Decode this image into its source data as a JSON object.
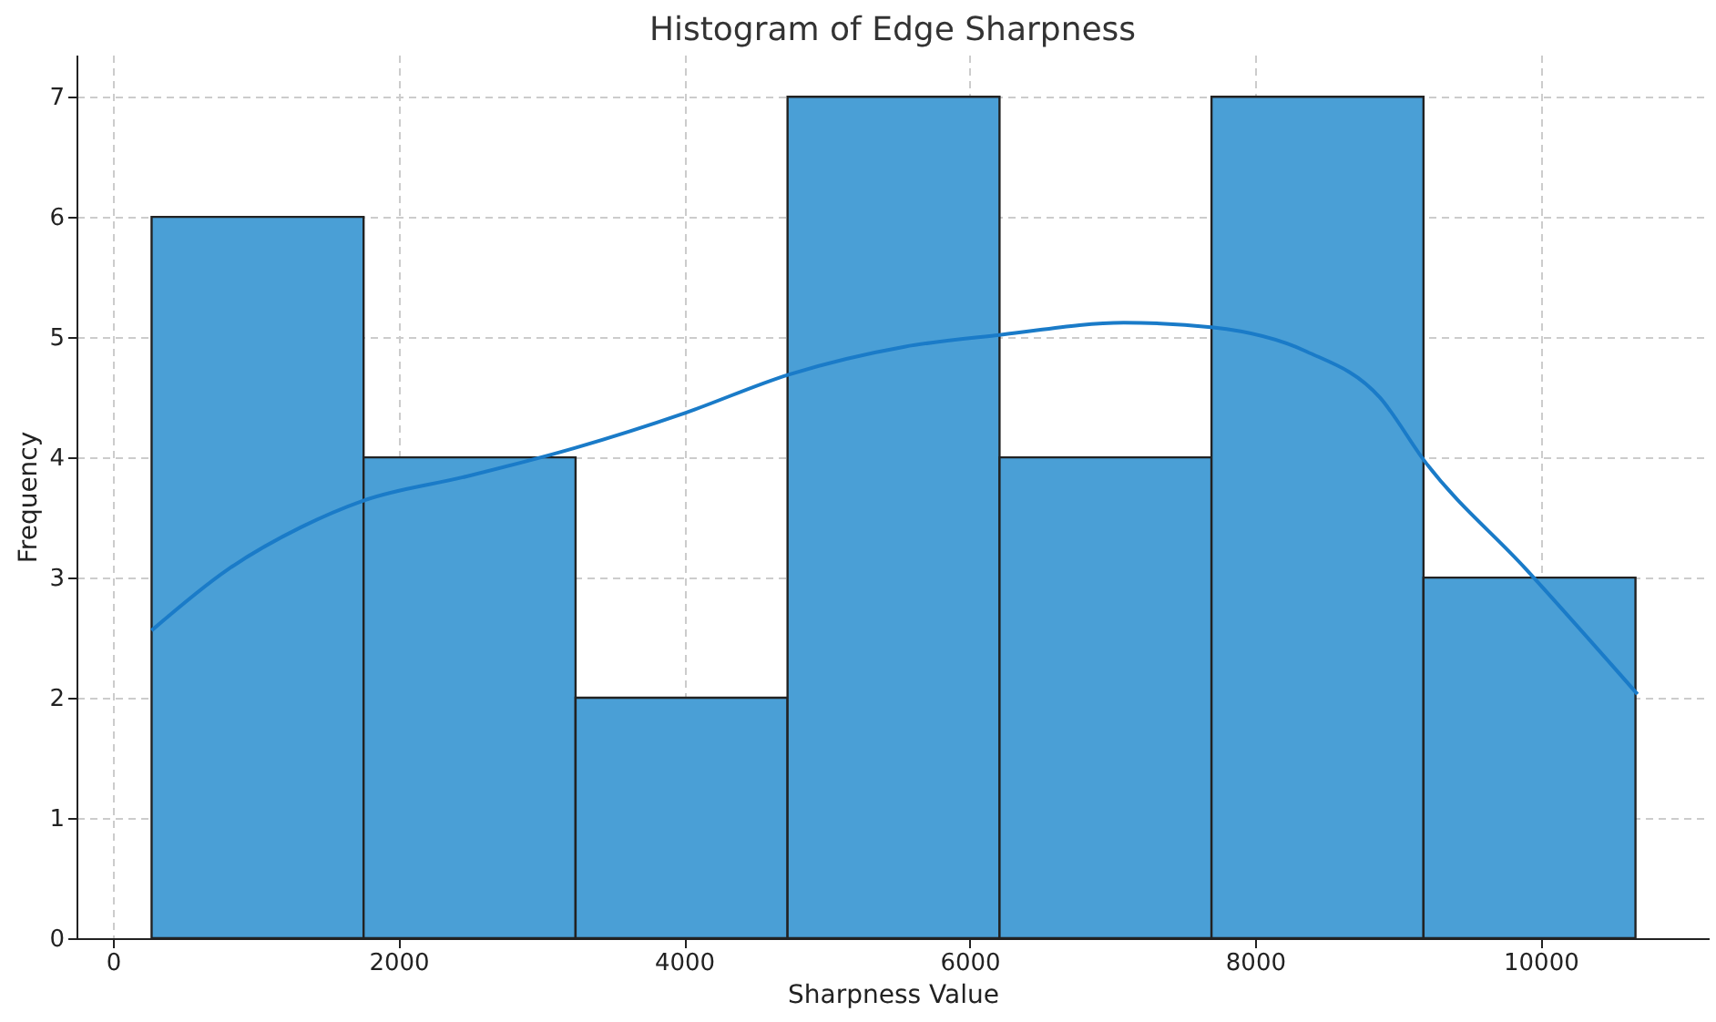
{
  "chart_data": {
    "type": "histogram",
    "title": "Histogram of Edge Sharpness",
    "xlabel": "Sharpness Value",
    "ylabel": "Frequency",
    "bins": [
      270,
      1755,
      3240,
      4725,
      6210,
      7695,
      9180,
      10665
    ],
    "values": [
      6,
      4,
      2,
      7,
      4,
      7,
      3
    ],
    "color": "#4a9fd6",
    "series": [
      {
        "type": "line",
        "color": "#1a7bc8",
        "x": [
          270,
          807,
          1319,
          1754,
          2471,
          3239,
          4008,
          4737,
          5544,
          6223,
          7081,
          7708,
          8361,
          8873,
          9193,
          9898,
          10679
        ],
        "values": [
          2.56,
          3.07,
          3.42,
          3.64,
          3.84,
          4.08,
          4.37,
          4.69,
          4.92,
          5.02,
          5.12,
          5.08,
          4.88,
          4.5,
          3.96,
          3.07,
          2.03
        ]
      }
    ],
    "xlim": [
      -256,
      11178
    ],
    "xticks": [
      0,
      2000,
      4000,
      6000,
      8000,
      10000
    ],
    "ylim": [
      0,
      7.35
    ],
    "yticks": [
      0,
      1,
      2,
      3,
      4,
      5,
      6,
      7
    ],
    "grid": true
  }
}
